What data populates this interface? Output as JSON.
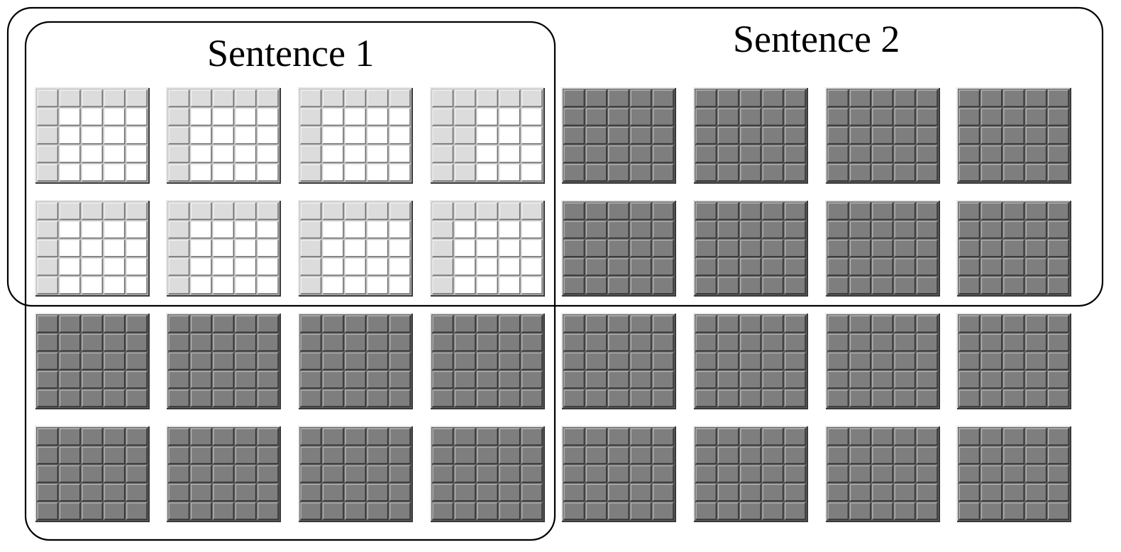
{
  "labels": {
    "sentence1": "Sentence 1",
    "sentence2": "Sentence 2"
  },
  "grid": {
    "block_rows": 4,
    "block_cols": 8,
    "cells_per_block_rows": 5,
    "cells_per_block_cols": 5
  },
  "colors": {
    "background": "#ffffff",
    "outline": "#000000",
    "active_block_light": "#dcdcdc",
    "active_block_white": "#ffffff",
    "inactive_block": "#7e7e7e",
    "cell_bevel_light": "#e6e6e6",
    "cell_bevel_dark": "#3a3a3a"
  },
  "active_region": {
    "rows": [
      0,
      1
    ],
    "cols": [
      0,
      1,
      2,
      3
    ]
  },
  "active_patterns": [
    [
      {
        "light_rows": [
          0
        ],
        "light_cols": [
          0
        ]
      },
      {
        "light_rows": [
          0
        ],
        "light_cols": [
          0
        ]
      },
      {
        "light_rows": [
          0
        ],
        "light_cols": [
          0
        ]
      },
      {
        "light_rows": [
          0
        ],
        "light_cols": [
          0,
          1
        ]
      }
    ],
    [
      {
        "light_rows": [
          0
        ],
        "light_cols": [
          0
        ]
      },
      {
        "light_rows": [
          0
        ],
        "light_cols": [
          0
        ]
      },
      {
        "light_rows": [
          0
        ],
        "light_cols": [
          0
        ]
      },
      {
        "light_rows": [
          0
        ],
        "light_cols": [
          0
        ]
      }
    ]
  ]
}
